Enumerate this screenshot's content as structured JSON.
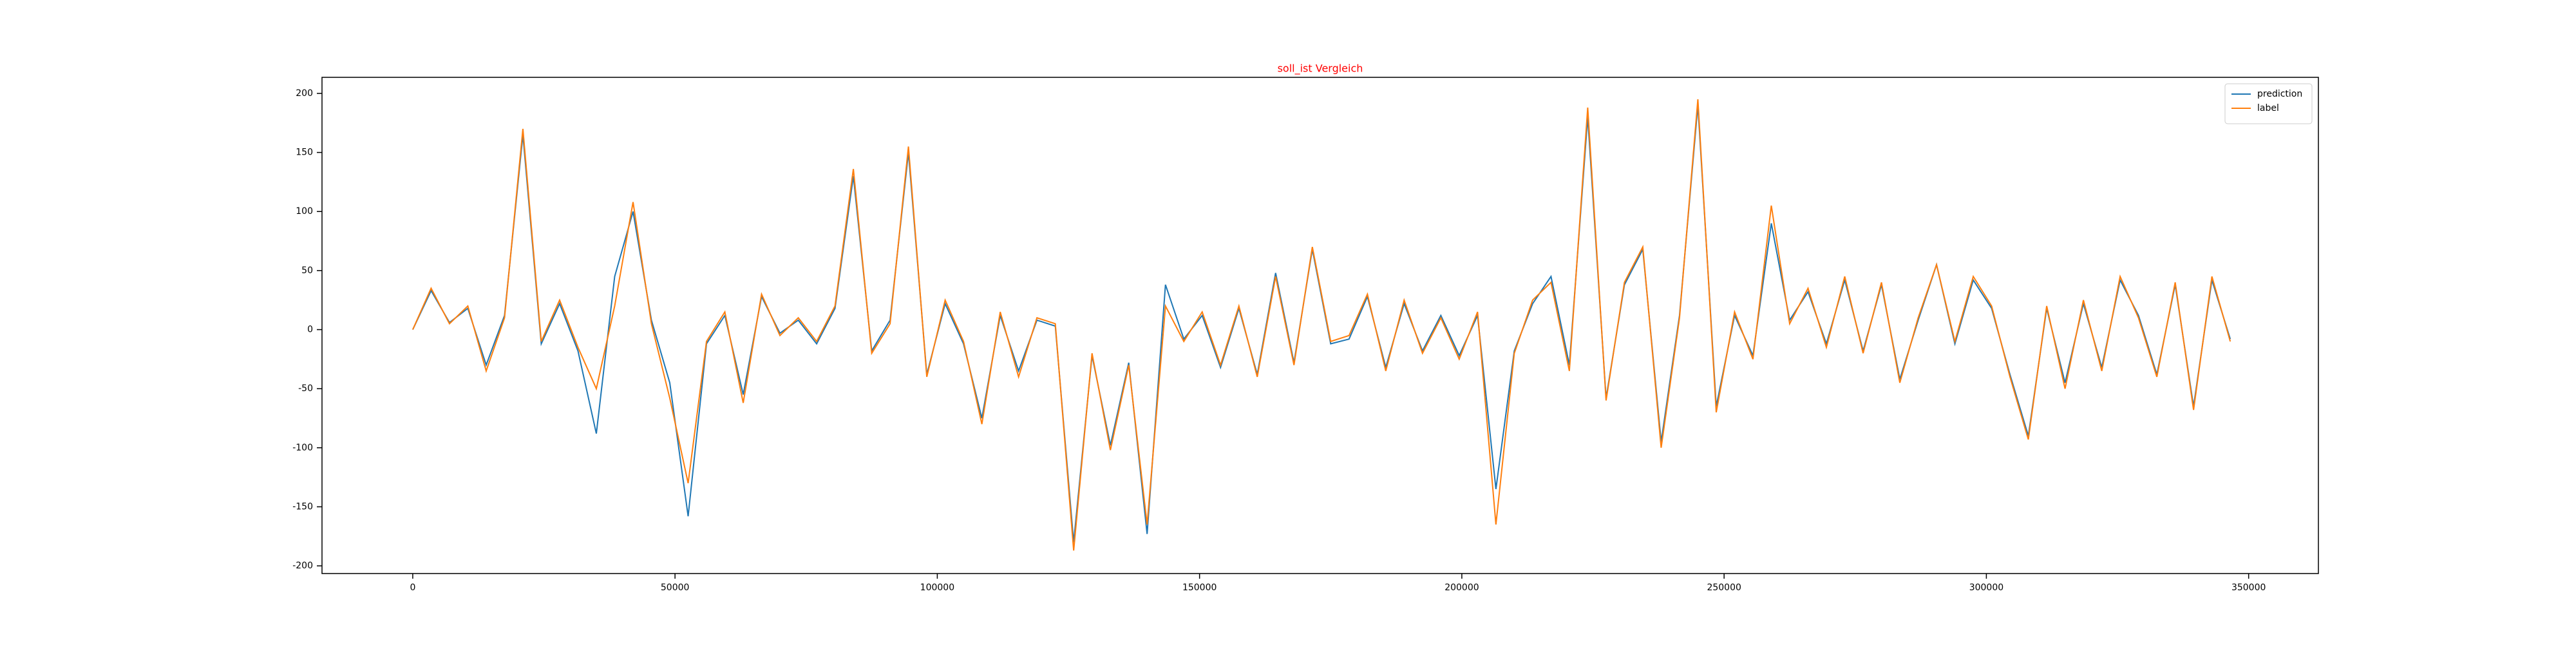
{
  "chart_data": {
    "type": "line",
    "title": "soll_ist Vergleich",
    "title_color": "#ff0000",
    "x": [
      0,
      3500,
      7000,
      10500,
      14000,
      17500,
      21000,
      24500,
      28000,
      31500,
      35000,
      38500,
      42000,
      45500,
      49000,
      52500,
      56000,
      59500,
      63000,
      66500,
      70000,
      73500,
      77000,
      80500,
      84000,
      87500,
      91000,
      94500,
      98000,
      101500,
      105000,
      108500,
      112000,
      115500,
      119000,
      122500,
      126000,
      129500,
      133000,
      136500,
      140000,
      143500,
      147000,
      150500,
      154000,
      157500,
      161000,
      164500,
      168000,
      171500,
      175000,
      178500,
      182000,
      185500,
      189000,
      192500,
      196000,
      199500,
      203000,
      206500,
      210000,
      213500,
      217000,
      220500,
      224000,
      227500,
      231000,
      234500,
      238000,
      241500,
      245000,
      248500,
      252000,
      255500,
      259000,
      262500,
      266000,
      269500,
      273000,
      276500,
      280000,
      283500,
      287000,
      290500,
      294000,
      297500,
      301000,
      304500,
      308000,
      311500,
      315000,
      318500,
      322000,
      325500,
      329000,
      332500,
      336000,
      339500,
      343000,
      346500
    ],
    "series": [
      {
        "name": "prediction",
        "color": "#1f77b4",
        "values": [
          0,
          33,
          6,
          18,
          -30,
          12,
          165,
          -12,
          22,
          -18,
          -88,
          45,
          100,
          8,
          -45,
          -158,
          -12,
          12,
          -55,
          28,
          -3,
          8,
          -12,
          18,
          130,
          -18,
          8,
          150,
          -38,
          22,
          -12,
          -75,
          12,
          -35,
          8,
          3,
          -180,
          -22,
          -98,
          -28,
          -173,
          38,
          -8,
          12,
          -32,
          18,
          -38,
          48,
          -28,
          68,
          -12,
          -8,
          28,
          -32,
          22,
          -18,
          12,
          -22,
          12,
          -135,
          -18,
          22,
          45,
          -30,
          180,
          -58,
          38,
          68,
          -95,
          12,
          190,
          -65,
          12,
          -22,
          90,
          8,
          32,
          -12,
          42,
          -18,
          38,
          -42,
          8,
          55,
          -12,
          42,
          18,
          -38,
          -90,
          18,
          -45,
          22,
          -32,
          42,
          12,
          -38,
          38,
          -65,
          42,
          -8
        ]
      },
      {
        "name": "label",
        "color": "#ff7f0e",
        "values": [
          0,
          35,
          5,
          20,
          -35,
          10,
          170,
          -10,
          25,
          -15,
          -50,
          20,
          108,
          5,
          -58,
          -130,
          -10,
          15,
          -62,
          30,
          -5,
          10,
          -10,
          20,
          136,
          -20,
          5,
          155,
          -40,
          25,
          -10,
          -80,
          15,
          -40,
          10,
          5,
          -187,
          -20,
          -102,
          -30,
          -165,
          20,
          -10,
          15,
          -30,
          20,
          -40,
          45,
          -30,
          70,
          -10,
          -5,
          30,
          -35,
          25,
          -20,
          10,
          -25,
          15,
          -165,
          -20,
          25,
          40,
          -35,
          188,
          -60,
          40,
          70,
          -100,
          10,
          195,
          -70,
          15,
          -25,
          105,
          5,
          35,
          -15,
          45,
          -20,
          40,
          -45,
          10,
          55,
          -10,
          45,
          20,
          -40,
          -93,
          20,
          -50,
          25,
          -35,
          45,
          10,
          -40,
          40,
          -68,
          45,
          -10
        ]
      }
    ],
    "xlim": [
      -17300,
      363300
    ],
    "ylim": [
      -206.5,
      213.6
    ],
    "xticks": [
      0,
      50000,
      100000,
      150000,
      200000,
      250000,
      300000,
      350000
    ],
    "yticks": [
      -200,
      -150,
      -100,
      -50,
      0,
      50,
      100,
      150,
      200
    ],
    "legend": "upper right"
  }
}
